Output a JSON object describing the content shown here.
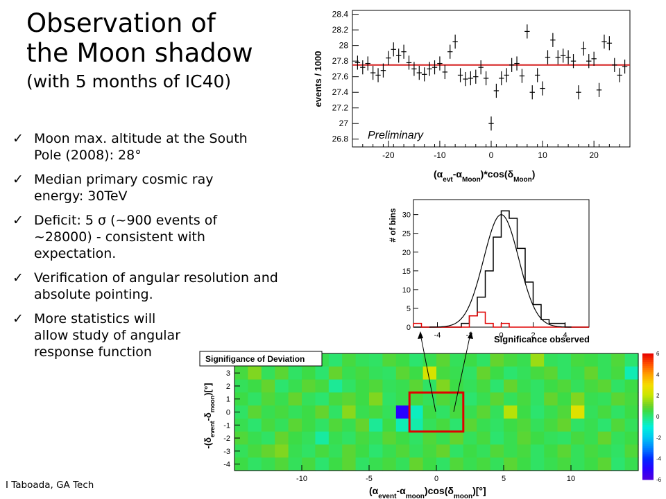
{
  "slide": {
    "title_line1": "Observation of",
    "title_line2": "the Moon shadow",
    "title_line3": "(with 5 months of IC40)",
    "bullets": [
      "Moon max. altitude at the South Pole (2008):  28°",
      "Median primary cosmic ray energy: 30TeV",
      "Deficit: 5 σ  (~900 events of ~28000) - consistent with expectation.",
      "Verification of angular resolution and absolute pointing.",
      "More statistics will allow study of angular response function"
    ],
    "footer": "I Taboada, GA Tech"
  },
  "chart_data": [
    {
      "type": "scatter",
      "ylabel": "events / 1000",
      "xlabel_parts": [
        "(α",
        "evt",
        "-α",
        "Moon",
        ")*cos(δ",
        "Moon",
        ")"
      ],
      "annotation": "Preliminary",
      "xlim": [
        -27,
        27
      ],
      "ylim": [
        26.7,
        28.45
      ],
      "xticks": [
        -20,
        -10,
        0,
        10,
        20
      ],
      "yticks": [
        26.8,
        27,
        27.2,
        27.4,
        27.6,
        27.8,
        28,
        28.2,
        28.4
      ],
      "reference_line_y": 27.75,
      "reference_line_color": "#d62020",
      "x": [
        -26,
        -25,
        -24,
        -23,
        -22,
        -21,
        -20,
        -19,
        -18,
        -17,
        -16,
        -15,
        -14,
        -13,
        -12,
        -11,
        -10,
        -9,
        -8,
        -7,
        -6,
        -5,
        -4,
        -3,
        -2,
        -1,
        0,
        1,
        2,
        3,
        4,
        5,
        6,
        7,
        8,
        9,
        10,
        11,
        12,
        13,
        14,
        15,
        16,
        17,
        18,
        19,
        20,
        21,
        22,
        23,
        24,
        25,
        26
      ],
      "y": [
        27.78,
        27.72,
        27.77,
        27.65,
        27.62,
        27.68,
        27.84,
        27.95,
        27.87,
        27.92,
        27.78,
        27.7,
        27.65,
        27.63,
        27.7,
        27.72,
        27.77,
        27.66,
        27.92,
        28.05,
        27.62,
        27.57,
        27.58,
        27.6,
        27.72,
        27.58,
        27.0,
        27.42,
        27.58,
        27.62,
        27.75,
        27.77,
        27.61,
        28.18,
        27.4,
        27.62,
        27.45,
        27.85,
        28.07,
        27.85,
        27.87,
        27.85,
        27.8,
        27.4,
        27.96,
        27.8,
        27.83,
        27.43,
        28.05,
        28.03,
        27.75,
        27.62,
        27.73
      ],
      "yerr": 0.18
    },
    {
      "type": "bar",
      "ylabel": "# of bins",
      "xlabel": "Significance observed",
      "xlim": [
        -5.5,
        5.5
      ],
      "ylim": [
        0,
        34
      ],
      "xticks": [
        -4,
        -2,
        0,
        2,
        4
      ],
      "yticks": [
        0,
        5,
        10,
        15,
        20,
        25,
        30
      ],
      "series": [
        {
          "color": "#000000",
          "bin_edges": [
            -5.5,
            -5.0,
            -4.5,
            -4.0,
            -3.5,
            -3.0,
            -2.5,
            -2.0,
            -1.5,
            -1.0,
            -0.5,
            0,
            0.5,
            1.0,
            1.5,
            2.0,
            2.5,
            3.0,
            3.5,
            4.0,
            4.5,
            5.0,
            5.5
          ],
          "values": [
            0,
            0,
            0,
            0,
            0,
            0,
            1,
            3,
            8,
            15,
            24,
            31,
            29,
            21,
            12,
            6,
            2,
            1,
            1,
            0,
            0,
            0
          ]
        },
        {
          "color": "#e00000",
          "bin_edges": [
            -5.5,
            -5.0,
            -4.5,
            -4.0,
            -3.5,
            -3.0,
            -2.5,
            -2.0,
            -1.5,
            -1.0,
            -0.5,
            0,
            0.5,
            1.0,
            1.5,
            2.0,
            2.5,
            3.0,
            3.5,
            4.0,
            4.5,
            5.0,
            5.5
          ],
          "values": [
            1,
            0,
            0,
            0,
            0,
            0,
            0,
            3,
            4,
            1,
            0,
            1,
            0,
            0,
            0,
            0,
            0,
            0,
            0,
            0,
            0,
            0
          ]
        }
      ],
      "fit": {
        "type": "gaussian",
        "mean": 0.0,
        "sigma": 1.1,
        "amplitude": 30
      }
    },
    {
      "type": "heatmap",
      "title": "Signifigance of Deviation",
      "ylabel_parts": [
        "-(δ",
        "event",
        "-δ",
        "moon",
        ")[°]"
      ],
      "xlabel_parts": [
        "(α",
        "event",
        "-α",
        "moon",
        ")cos(δ",
        "moon",
        ")[°]"
      ],
      "x_range": [
        -15,
        15
      ],
      "y_range": [
        -4.5,
        4.5
      ],
      "xticks": [
        -10,
        -5,
        0,
        5,
        10
      ],
      "yticks": [
        -4,
        -3,
        -2,
        -1,
        0,
        1,
        2,
        3
      ],
      "zlim": [
        -6,
        6
      ],
      "colorbar_ticks": [
        -6,
        -4,
        -2,
        0,
        2,
        4,
        6
      ],
      "highlight_box": {
        "x": [
          -2,
          2
        ],
        "y": [
          -1.5,
          1.5
        ],
        "color": "#e00000"
      },
      "rows_top_to_bottom": [
        [
          0.8,
          0.3,
          0.6,
          0.2,
          0.5,
          0.9,
          0.4,
          0.1,
          0.6,
          0.3,
          0.2,
          0.7,
          0.5,
          0.1,
          0.4,
          0.8,
          0.3,
          0.5,
          0.2,
          0.9,
          0.6,
          0.4,
          1.5,
          0.3,
          0.2,
          0.6,
          0.5,
          0.3,
          0.7,
          0.1
        ],
        [
          0.6,
          1.2,
          0.3,
          0.8,
          0.2,
          0.5,
          0.1,
          0.9,
          0.4,
          0.6,
          0.3,
          0.2,
          0.8,
          0.5,
          2.3,
          0.6,
          0.4,
          0.2,
          0.9,
          0.5,
          0.1,
          0.3,
          0.6,
          0.8,
          0.2,
          0.4,
          0.9,
          0.3,
          0.6,
          -0.6
        ],
        [
          0.3,
          0.5,
          0.9,
          0.1,
          0.4,
          0.8,
          0.6,
          -0.3,
          0.2,
          0.5,
          0.7,
          0.3,
          0.4,
          0.8,
          0.2,
          1.2,
          0.5,
          0.3,
          0.6,
          0.1,
          0.9,
          0.4,
          0.2,
          0.5,
          0.7,
          0.3,
          0.6,
          0.8,
          0.2,
          0.5
        ],
        [
          0.5,
          0.2,
          0.7,
          0.4,
          0.9,
          0.3,
          0.1,
          0.6,
          0.8,
          0.5,
          1.2,
          0.2,
          0.4,
          0.6,
          0.3,
          0.7,
          0.5,
          0.1,
          0.4,
          0.8,
          0.3,
          0.6,
          0.2,
          0.9,
          0.5,
          1.2,
          0.4,
          0.3,
          0.8,
          0.6
        ],
        [
          0.2,
          0.8,
          0.4,
          0.6,
          0.3,
          0.5,
          0.9,
          0.2,
          1.3,
          0.4,
          0.6,
          0.3,
          -5.0,
          -0.7,
          0.5,
          0.2,
          0.6,
          0.4,
          0.8,
          0.3,
          1.8,
          0.5,
          0.1,
          0.4,
          0.7,
          2.5,
          0.3,
          0.6,
          0.2,
          0.5
        ],
        [
          0.4,
          0.1,
          0.6,
          0.3,
          0.8,
          0.5,
          0.2,
          0.7,
          0.4,
          0.9,
          -0.3,
          0.5,
          -0.6,
          -0.5,
          0.3,
          0.6,
          0.1,
          0.8,
          0.4,
          0.2,
          0.5,
          0.7,
          0.3,
          0.6,
          0.9,
          0.2,
          0.4,
          0.1,
          0.7,
          0.3
        ],
        [
          0.7,
          0.4,
          0.2,
          0.9,
          0.5,
          0.3,
          -0.4,
          0.4,
          0.2,
          0.6,
          0.3,
          0.8,
          0.5,
          0.2,
          0.7,
          0.4,
          0.9,
          0.3,
          0.6,
          0.1,
          0.4,
          0.8,
          0.5,
          0.3,
          0.2,
          0.6,
          0.4,
          0.9,
          0.3,
          0.5
        ],
        [
          0.3,
          0.6,
          0.9,
          1.2,
          0.4,
          0.2,
          0.6,
          0.3,
          0.8,
          0.5,
          0.1,
          0.4,
          0.7,
          0.3,
          0.6,
          0.9,
          0.2,
          0.5,
          0.3,
          0.7,
          0.4,
          0.6,
          0.2,
          0.5,
          0.8,
          0.3,
          0.6,
          0.4,
          0.2,
          0.7
        ],
        [
          0.5,
          0.2,
          0.4,
          0.7,
          0.3,
          0.6,
          0.1,
          0.5,
          0.8,
          0.2,
          0.4,
          0.6,
          0.3,
          0.9,
          0.5,
          0.2,
          0.7,
          0.4,
          0.6,
          0.3,
          0.8,
          0.5,
          0.2,
          0.4,
          0.6,
          0.3,
          0.5,
          0.8,
          0.1,
          0.4
        ]
      ]
    }
  ]
}
